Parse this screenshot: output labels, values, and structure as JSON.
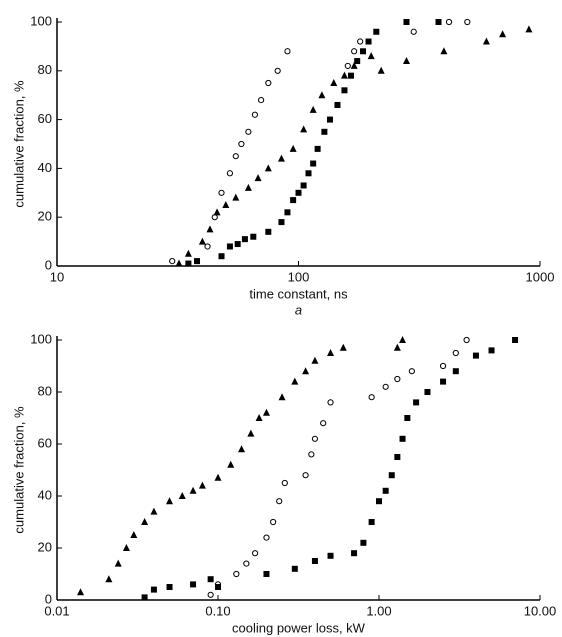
{
  "chart_data": [
    {
      "type": "scatter",
      "xlabel": "time constant, ns",
      "ylabel": "cumulative fraction, %",
      "caption": "a",
      "log_x": true,
      "xlim": [
        10,
        1000
      ],
      "ylim": [
        0,
        100
      ],
      "xticks": [
        10,
        100,
        1000
      ],
      "yticks": [
        0,
        20,
        40,
        60,
        80,
        100
      ],
      "series": [
        {
          "marker": "square",
          "color": "#000000",
          "x": [
            35,
            38,
            48,
            52,
            56,
            60,
            65,
            75,
            85,
            90,
            95,
            100,
            105,
            110,
            115,
            120,
            128,
            135,
            145,
            155,
            165,
            175,
            185,
            195,
            210,
            280,
            380
          ],
          "y": [
            1,
            2,
            4,
            8,
            9,
            11,
            12,
            14,
            18,
            22,
            27,
            30,
            33,
            38,
            42,
            48,
            55,
            60,
            66,
            72,
            78,
            84,
            88,
            92,
            96,
            100,
            100
          ]
        },
        {
          "marker": "circle",
          "color": "#000000",
          "x": [
            30,
            42,
            45,
            48,
            52,
            55,
            58,
            62,
            66,
            70,
            75,
            82,
            90,
            160,
            170,
            180,
            300,
            420,
            500
          ],
          "y": [
            2,
            8,
            20,
            30,
            38,
            45,
            50,
            55,
            62,
            68,
            75,
            80,
            88,
            82,
            88,
            92,
            96,
            100,
            100
          ]
        },
        {
          "marker": "triangle",
          "color": "#000000",
          "x": [
            32,
            35,
            40,
            43,
            46,
            50,
            55,
            62,
            68,
            75,
            85,
            95,
            105,
            115,
            125,
            140,
            155,
            170,
            200,
            220,
            280,
            400,
            600,
            700,
            900
          ],
          "y": [
            1,
            5,
            10,
            15,
            22,
            25,
            28,
            32,
            36,
            40,
            44,
            48,
            56,
            64,
            70,
            75,
            78,
            82,
            86,
            80,
            84,
            88,
            92,
            95,
            97
          ]
        }
      ]
    },
    {
      "type": "scatter",
      "xlabel": "cooling power loss, kW",
      "ylabel": "cumulative fraction, %",
      "caption": "b",
      "log_x": true,
      "xlim": [
        0.01,
        10
      ],
      "ylim": [
        0,
        100
      ],
      "xticks": [
        {
          "value": 0.01,
          "label": "0.01"
        },
        {
          "value": 0.1,
          "label": "0.10"
        },
        {
          "value": 1,
          "label": "1.00"
        },
        {
          "value": 10,
          "label": "10.00"
        }
      ],
      "yticks": [
        0,
        20,
        40,
        60,
        80,
        100
      ],
      "series": [
        {
          "marker": "triangle",
          "color": "#000000",
          "x": [
            0.014,
            0.021,
            0.024,
            0.027,
            0.03,
            0.035,
            0.04,
            0.05,
            0.06,
            0.07,
            0.08,
            0.1,
            0.12,
            0.14,
            0.16,
            0.18,
            0.2,
            0.25,
            0.3,
            0.35,
            0.4,
            0.5,
            0.6,
            1.3,
            1.4
          ],
          "y": [
            3,
            8,
            14,
            20,
            25,
            30,
            34,
            38,
            40,
            42,
            44,
            47,
            52,
            58,
            64,
            70,
            72,
            78,
            84,
            88,
            92,
            95,
            97,
            97,
            100
          ]
        },
        {
          "marker": "circle",
          "color": "#000000",
          "x": [
            0.09,
            0.1,
            0.13,
            0.15,
            0.17,
            0.2,
            0.22,
            0.24,
            0.26,
            0.35,
            0.38,
            0.4,
            0.45,
            0.5,
            0.9,
            1.1,
            1.3,
            1.6,
            2.5,
            3,
            3.5
          ],
          "y": [
            2,
            6,
            10,
            14,
            18,
            24,
            30,
            38,
            45,
            48,
            56,
            62,
            68,
            76,
            78,
            82,
            85,
            88,
            90,
            95,
            100
          ]
        },
        {
          "marker": "square",
          "color": "#000000",
          "x": [
            0.035,
            0.04,
            0.05,
            0.07,
            0.09,
            0.1,
            0.2,
            0.3,
            0.4,
            0.5,
            0.7,
            0.8,
            0.9,
            1.0,
            1.1,
            1.2,
            1.3,
            1.4,
            1.5,
            1.7,
            2.0,
            2.5,
            3.0,
            4.0,
            5.0,
            7.0
          ],
          "y": [
            1,
            4,
            5,
            6,
            8,
            5,
            10,
            12,
            15,
            17,
            18,
            22,
            30,
            38,
            42,
            48,
            55,
            62,
            70,
            76,
            80,
            84,
            88,
            94,
            96,
            100
          ]
        }
      ]
    }
  ]
}
